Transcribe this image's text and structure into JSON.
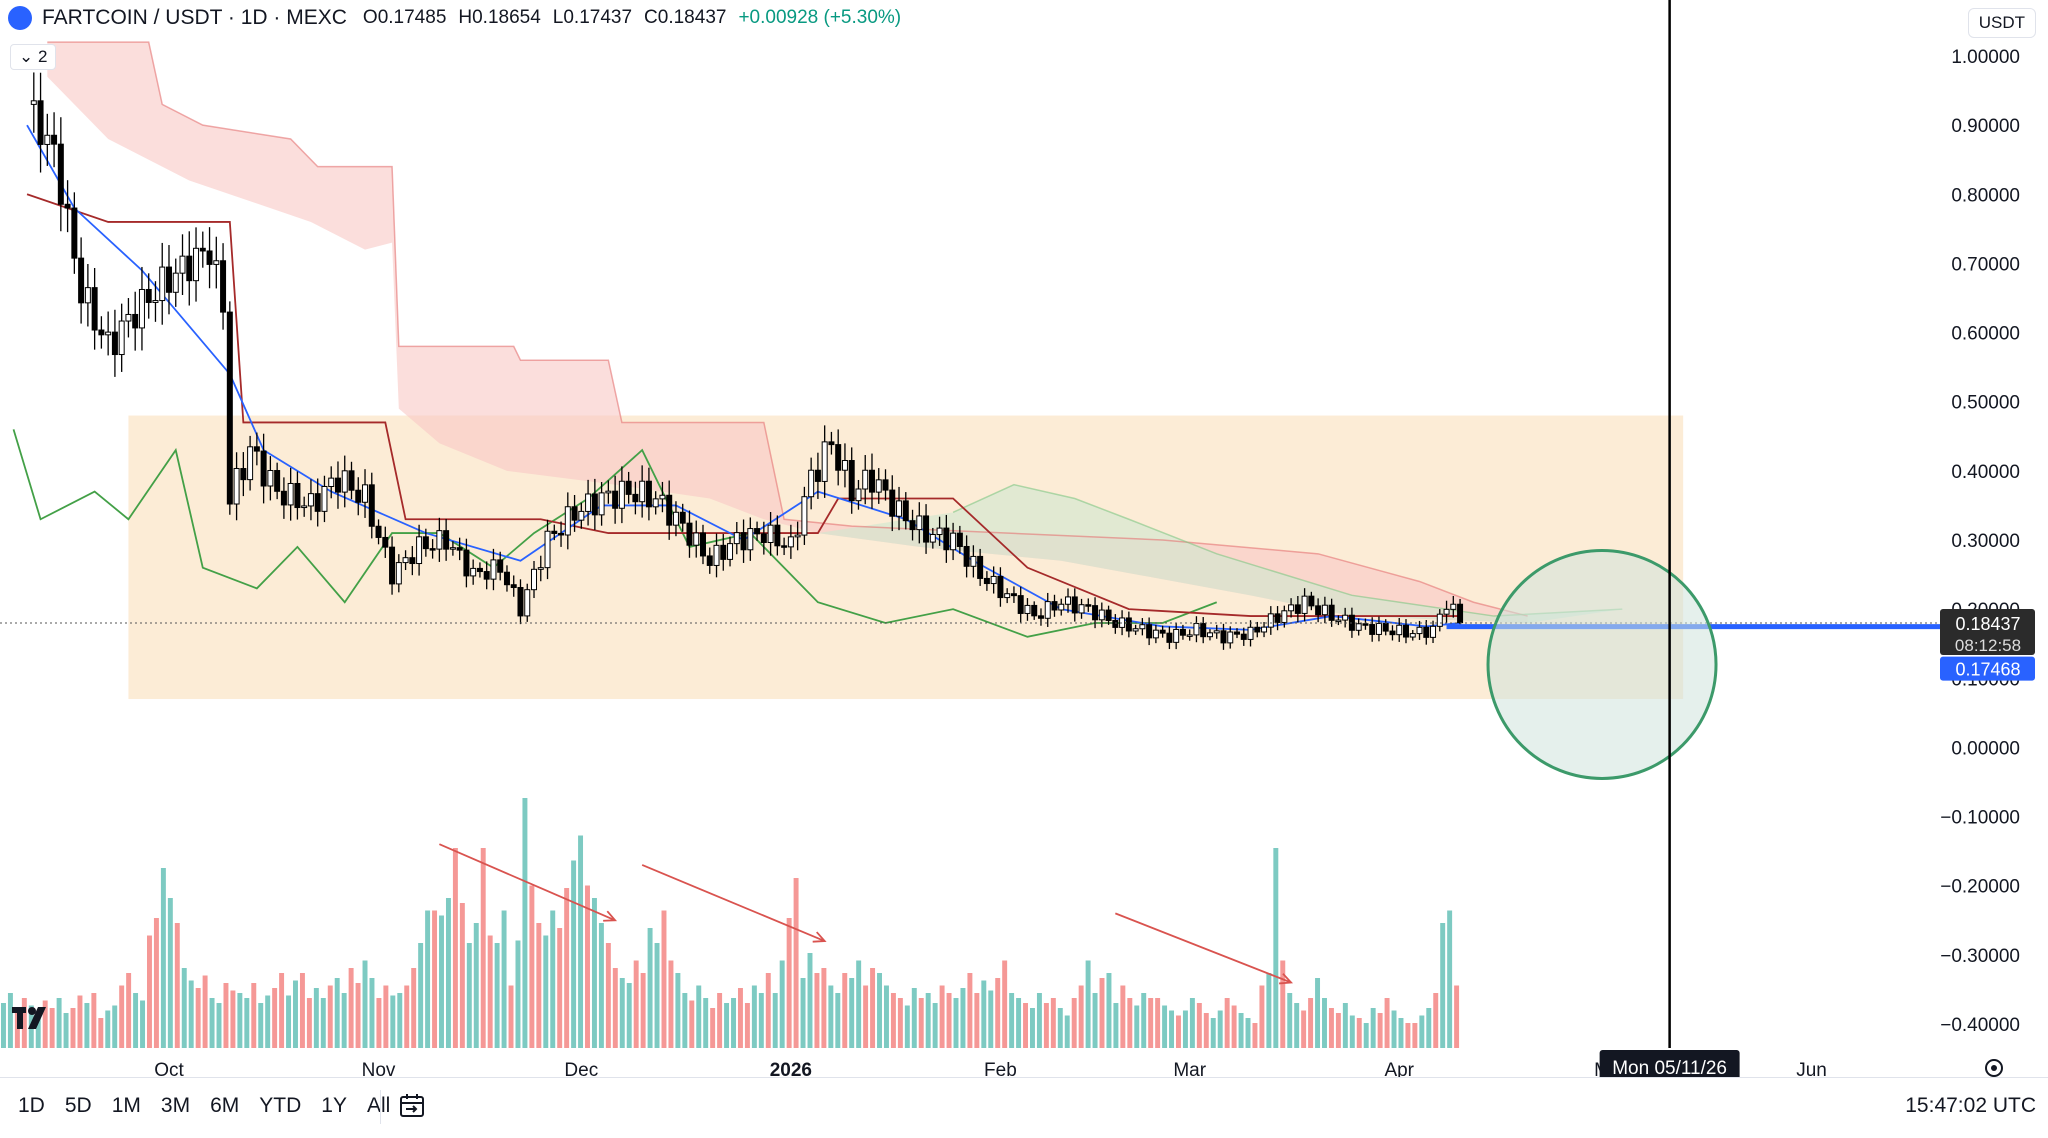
{
  "header": {
    "symbol": "FARTCOIN / USDT · 1D · MEXC",
    "open": "O0.17485",
    "high": "H0.18654",
    "low": "L0.17437",
    "close": "C0.18437",
    "change": "+0.00928 (+5.30%)",
    "indicator_count": "2",
    "currency": "USDT"
  },
  "price_labels": {
    "last_price": "0.18437",
    "countdown": "08:12:58",
    "line_price": "0.17468"
  },
  "crosshair_date": "Mon 05/11/26",
  "bottom_bar": {
    "ranges": [
      "1D",
      "5D",
      "1M",
      "3M",
      "6M",
      "YTD",
      "1Y",
      "All"
    ],
    "time": "15:47:02 UTC"
  },
  "colors": {
    "up": "#26a69a",
    "down": "#ef5350",
    "candle": "#000000",
    "cloud_bear": "#f8c8c4",
    "cloud_bull": "#cfe7cf",
    "range_box": "#fbe9cf",
    "hline": "#2962ff",
    "circle": "#3c9a6a",
    "arrows": "#d9534f",
    "tenkan": "#2962ff",
    "kijun": "#a52a2a",
    "chikou": "#43a047"
  },
  "chart_data": {
    "type": "candlestick",
    "y_axis": {
      "min": -0.4,
      "max": 1.0,
      "step": 0.1,
      "ticks": [
        "1.00000",
        "0.90000",
        "0.80000",
        "0.70000",
        "0.60000",
        "0.50000",
        "0.40000",
        "0.30000",
        "0.20000",
        "0.10000",
        "0.00000",
        "−0.10000",
        "−0.20000",
        "−0.30000",
        "−0.40000"
      ]
    },
    "x_axis": {
      "ticks": [
        "Oct",
        "Nov",
        "Dec",
        "2026",
        "Feb",
        "Mar",
        "Apr",
        "M",
        "Jun"
      ]
    },
    "annotations": {
      "range_box_price": [
        0.07,
        0.48
      ],
      "range_box_dates": [
        "2025-09-25",
        "2026-05-13"
      ],
      "circle_center_price": 0.12,
      "circle_center_date": "2026-05-01",
      "vertical_line_date": "2026-05-11",
      "horizontal_line_price": 0.1747
    },
    "price_close": [
      {
        "date": "2025-09-10",
        "value": 0.93
      },
      {
        "date": "2025-09-14",
        "value": 0.86
      },
      {
        "date": "2025-09-18",
        "value": 0.66
      },
      {
        "date": "2025-09-22",
        "value": 0.58
      },
      {
        "date": "2025-09-26",
        "value": 0.63
      },
      {
        "date": "2025-09-30",
        "value": 0.67
      },
      {
        "date": "2025-10-04",
        "value": 0.7
      },
      {
        "date": "2025-10-07",
        "value": 0.72
      },
      {
        "date": "2025-10-09",
        "value": 0.64
      },
      {
        "date": "2025-10-10",
        "value": 0.36
      },
      {
        "date": "2025-10-13",
        "value": 0.43
      },
      {
        "date": "2025-10-17",
        "value": 0.37
      },
      {
        "date": "2025-10-22",
        "value": 0.35
      },
      {
        "date": "2025-10-26",
        "value": 0.39
      },
      {
        "date": "2025-10-30",
        "value": 0.36
      },
      {
        "date": "2025-11-03",
        "value": 0.25
      },
      {
        "date": "2025-11-07",
        "value": 0.29
      },
      {
        "date": "2025-11-11",
        "value": 0.3
      },
      {
        "date": "2025-11-15",
        "value": 0.25
      },
      {
        "date": "2025-11-19",
        "value": 0.26
      },
      {
        "date": "2025-11-22",
        "value": 0.2
      },
      {
        "date": "2025-11-26",
        "value": 0.3
      },
      {
        "date": "2025-11-30",
        "value": 0.34
      },
      {
        "date": "2025-12-04",
        "value": 0.36
      },
      {
        "date": "2025-12-08",
        "value": 0.37
      },
      {
        "date": "2025-12-12",
        "value": 0.36
      },
      {
        "date": "2025-12-16",
        "value": 0.32
      },
      {
        "date": "2025-12-20",
        "value": 0.27
      },
      {
        "date": "2025-12-24",
        "value": 0.3
      },
      {
        "date": "2025-12-28",
        "value": 0.31
      },
      {
        "date": "2026-01-01",
        "value": 0.29
      },
      {
        "date": "2026-01-04",
        "value": 0.39
      },
      {
        "date": "2026-01-07",
        "value": 0.44
      },
      {
        "date": "2026-01-10",
        "value": 0.37
      },
      {
        "date": "2026-01-13",
        "value": 0.39
      },
      {
        "date": "2026-01-17",
        "value": 0.34
      },
      {
        "date": "2026-01-21",
        "value": 0.31
      },
      {
        "date": "2026-01-25",
        "value": 0.3
      },
      {
        "date": "2026-01-29",
        "value": 0.25
      },
      {
        "date": "2026-02-02",
        "value": 0.22
      },
      {
        "date": "2026-02-06",
        "value": 0.19
      },
      {
        "date": "2026-02-10",
        "value": 0.21
      },
      {
        "date": "2026-02-14",
        "value": 0.2
      },
      {
        "date": "2026-02-18",
        "value": 0.18
      },
      {
        "date": "2026-02-22",
        "value": 0.17
      },
      {
        "date": "2026-02-26",
        "value": 0.16
      },
      {
        "date": "2026-03-02",
        "value": 0.17
      },
      {
        "date": "2026-03-06",
        "value": 0.16
      },
      {
        "date": "2026-03-10",
        "value": 0.165
      },
      {
        "date": "2026-03-14",
        "value": 0.19
      },
      {
        "date": "2026-03-18",
        "value": 0.21
      },
      {
        "date": "2026-03-22",
        "value": 0.19
      },
      {
        "date": "2026-03-26",
        "value": 0.175
      },
      {
        "date": "2026-03-30",
        "value": 0.17
      },
      {
        "date": "2026-04-03",
        "value": 0.165
      },
      {
        "date": "2026-04-06",
        "value": 0.17
      },
      {
        "date": "2026-04-08",
        "value": 0.21
      },
      {
        "date": "2026-04-10",
        "value": 0.184
      }
    ],
    "cloud_bear_top": [
      {
        "date": "2025-09-13",
        "value": 1.02
      },
      {
        "date": "2025-09-28",
        "value": 1.02
      },
      {
        "date": "2025-09-30",
        "value": 0.93
      },
      {
        "date": "2025-10-06",
        "value": 0.9
      },
      {
        "date": "2025-10-19",
        "value": 0.88
      },
      {
        "date": "2025-10-23",
        "value": 0.84
      },
      {
        "date": "2025-11-03",
        "value": 0.84
      },
      {
        "date": "2025-11-04",
        "value": 0.58
      },
      {
        "date": "2025-11-21",
        "value": 0.58
      },
      {
        "date": "2025-11-22",
        "value": 0.56
      },
      {
        "date": "2025-12-05",
        "value": 0.56
      },
      {
        "date": "2025-12-07",
        "value": 0.47
      },
      {
        "date": "2025-12-28",
        "value": 0.47
      },
      {
        "date": "2025-12-31",
        "value": 0.33
      },
      {
        "date": "2026-01-10",
        "value": 0.32
      },
      {
        "date": "2026-02-25",
        "value": 0.3
      },
      {
        "date": "2026-03-20",
        "value": 0.28
      },
      {
        "date": "2026-04-04",
        "value": 0.24
      },
      {
        "date": "2026-04-12",
        "value": 0.21
      },
      {
        "date": "2026-04-20",
        "value": 0.19
      }
    ],
    "cloud_bear_bottom": [
      {
        "date": "2025-09-13",
        "value": 0.97
      },
      {
        "date": "2025-09-22",
        "value": 0.88
      },
      {
        "date": "2025-10-04",
        "value": 0.82
      },
      {
        "date": "2025-10-22",
        "value": 0.76
      },
      {
        "date": "2025-10-30",
        "value": 0.72
      },
      {
        "date": "2025-11-03",
        "value": 0.73
      },
      {
        "date": "2025-11-04",
        "value": 0.49
      },
      {
        "date": "2025-11-10",
        "value": 0.44
      },
      {
        "date": "2025-11-20",
        "value": 0.4
      },
      {
        "date": "2025-12-06",
        "value": 0.38
      },
      {
        "date": "2025-12-20",
        "value": 0.36
      },
      {
        "date": "2025-12-28",
        "value": 0.33
      },
      {
        "date": "2026-01-05",
        "value": 0.31
      },
      {
        "date": "2026-01-20",
        "value": 0.29
      },
      {
        "date": "2026-02-10",
        "value": 0.27
      },
      {
        "date": "2026-03-10",
        "value": 0.22
      },
      {
        "date": "2026-03-25",
        "value": 0.19
      },
      {
        "date": "2026-04-20",
        "value": 0.18
      }
    ],
    "cloud_bull_top": [
      {
        "date": "2026-01-25",
        "value": 0.34
      },
      {
        "date": "2026-02-03",
        "value": 0.38
      },
      {
        "date": "2026-02-12",
        "value": 0.36
      },
      {
        "date": "2026-02-20",
        "value": 0.33
      },
      {
        "date": "2026-03-05",
        "value": 0.28
      },
      {
        "date": "2026-03-25",
        "value": 0.22
      },
      {
        "date": "2026-04-15",
        "value": 0.19
      },
      {
        "date": "2026-05-04",
        "value": 0.2
      }
    ],
    "tenkan": [
      {
        "date": "2025-09-10",
        "value": 0.9
      },
      {
        "date": "2025-09-17",
        "value": 0.78
      },
      {
        "date": "2025-09-27",
        "value": 0.69
      },
      {
        "date": "2025-10-10",
        "value": 0.54
      },
      {
        "date": "2025-10-15",
        "value": 0.43
      },
      {
        "date": "2025-10-25",
        "value": 0.37
      },
      {
        "date": "2025-11-08",
        "value": 0.31
      },
      {
        "date": "2025-11-22",
        "value": 0.27
      },
      {
        "date": "2025-12-04",
        "value": 0.35
      },
      {
        "date": "2025-12-15",
        "value": 0.35
      },
      {
        "date": "2025-12-25",
        "value": 0.3
      },
      {
        "date": "2026-01-05",
        "value": 0.37
      },
      {
        "date": "2026-01-18",
        "value": 0.33
      },
      {
        "date": "2026-01-28",
        "value": 0.27
      },
      {
        "date": "2026-02-10",
        "value": 0.2
      },
      {
        "date": "2026-02-25",
        "value": 0.175
      },
      {
        "date": "2026-03-10",
        "value": 0.17
      },
      {
        "date": "2026-03-22",
        "value": 0.19
      },
      {
        "date": "2026-04-05",
        "value": 0.175
      },
      {
        "date": "2026-04-10",
        "value": 0.18
      }
    ],
    "kijun": [
      {
        "date": "2025-09-10",
        "value": 0.8
      },
      {
        "date": "2025-09-22",
        "value": 0.76
      },
      {
        "date": "2025-10-10",
        "value": 0.76
      },
      {
        "date": "2025-10-12",
        "value": 0.47
      },
      {
        "date": "2025-11-02",
        "value": 0.47
      },
      {
        "date": "2025-11-05",
        "value": 0.33
      },
      {
        "date": "2025-11-25",
        "value": 0.33
      },
      {
        "date": "2025-12-05",
        "value": 0.31
      },
      {
        "date": "2026-01-05",
        "value": 0.31
      },
      {
        "date": "2026-01-08",
        "value": 0.36
      },
      {
        "date": "2026-01-25",
        "value": 0.36
      },
      {
        "date": "2026-02-05",
        "value": 0.26
      },
      {
        "date": "2026-02-20",
        "value": 0.2
      },
      {
        "date": "2026-03-10",
        "value": 0.19
      },
      {
        "date": "2026-04-10",
        "value": 0.19
      }
    ],
    "chikou": [
      {
        "date": "2025-09-08",
        "value": 0.46
      },
      {
        "date": "2025-09-12",
        "value": 0.33
      },
      {
        "date": "2025-09-20",
        "value": 0.37
      },
      {
        "date": "2025-09-25",
        "value": 0.33
      },
      {
        "date": "2025-10-02",
        "value": 0.43
      },
      {
        "date": "2025-10-06",
        "value": 0.26
      },
      {
        "date": "2025-10-14",
        "value": 0.23
      },
      {
        "date": "2025-10-20",
        "value": 0.29
      },
      {
        "date": "2025-10-27",
        "value": 0.21
      },
      {
        "date": "2025-11-03",
        "value": 0.31
      },
      {
        "date": "2025-11-10",
        "value": 0.31
      },
      {
        "date": "2025-11-18",
        "value": 0.26
      },
      {
        "date": "2025-11-24",
        "value": 0.31
      },
      {
        "date": "2025-12-02",
        "value": 0.36
      },
      {
        "date": "2025-12-10",
        "value": 0.43
      },
      {
        "date": "2025-12-17",
        "value": 0.29
      },
      {
        "date": "2025-12-26",
        "value": 0.31
      },
      {
        "date": "2026-01-05",
        "value": 0.21
      },
      {
        "date": "2026-01-15",
        "value": 0.18
      },
      {
        "date": "2026-01-25",
        "value": 0.2
      },
      {
        "date": "2026-02-05",
        "value": 0.16
      },
      {
        "date": "2026-02-15",
        "value": 0.18
      },
      {
        "date": "2026-02-25",
        "value": 0.18
      },
      {
        "date": "2026-03-05",
        "value": 0.21
      }
    ],
    "volume_relative": [
      0.18,
      0.22,
      0.15,
      0.2,
      0.17,
      0.14,
      0.19,
      0.16,
      0.2,
      0.14,
      0.16,
      0.21,
      0.18,
      0.22,
      0.12,
      0.15,
      0.17,
      0.25,
      0.3,
      0.22,
      0.19,
      0.45,
      0.52,
      0.72,
      0.6,
      0.5,
      0.32,
      0.27,
      0.24,
      0.29,
      0.2,
      0.18,
      0.26,
      0.23,
      0.22,
      0.2,
      0.26,
      0.18,
      0.21,
      0.24,
      0.3,
      0.21,
      0.27,
      0.3,
      0.2,
      0.24,
      0.2,
      0.25,
      0.28,
      0.22,
      0.32,
      0.26,
      0.35,
      0.28,
      0.2,
      0.25,
      0.21,
      0.22,
      0.25,
      0.32,
      0.42,
      0.55,
      0.55,
      0.53,
      0.6,
      0.8,
      0.58,
      0.42,
      0.5,
      0.8,
      0.45,
      0.42,
      0.55,
      0.25,
      0.43,
      1.0,
      0.65,
      0.5,
      0.45,
      0.55,
      0.48,
      0.64,
      0.75,
      0.85,
      0.65,
      0.6,
      0.5,
      0.42,
      0.32,
      0.28,
      0.26,
      0.35,
      0.3,
      0.48,
      0.42,
      0.55,
      0.35,
      0.3,
      0.22,
      0.19,
      0.25,
      0.2,
      0.16,
      0.22,
      0.18,
      0.2,
      0.24,
      0.18,
      0.25,
      0.22,
      0.3,
      0.22,
      0.35,
      0.52,
      0.68,
      0.28,
      0.38,
      0.3,
      0.32,
      0.25,
      0.22,
      0.3,
      0.28,
      0.35,
      0.25,
      0.32,
      0.3,
      0.25,
      0.22,
      0.2,
      0.17,
      0.24,
      0.2,
      0.22,
      0.18,
      0.25,
      0.22,
      0.2,
      0.24,
      0.3,
      0.22,
      0.27,
      0.23,
      0.28,
      0.35,
      0.22,
      0.2,
      0.18,
      0.16,
      0.22,
      0.18,
      0.2,
      0.16,
      0.13,
      0.2,
      0.25,
      0.35,
      0.22,
      0.28,
      0.3,
      0.18,
      0.25,
      0.2,
      0.17,
      0.22,
      0.2,
      0.2,
      0.17,
      0.15,
      0.13,
      0.15,
      0.2,
      0.18,
      0.14,
      0.12,
      0.15,
      0.2,
      0.17,
      0.14,
      0.12,
      0.1,
      0.25,
      0.3,
      0.8,
      0.35,
      0.22,
      0.18,
      0.15,
      0.2,
      0.28,
      0.2,
      0.16,
      0.14,
      0.18,
      0.13,
      0.12,
      0.1,
      0.16,
      0.14,
      0.2,
      0.15,
      0.12,
      0.1,
      0.1,
      0.13,
      0.16,
      0.22,
      0.5,
      0.55,
      0.25
    ]
  }
}
